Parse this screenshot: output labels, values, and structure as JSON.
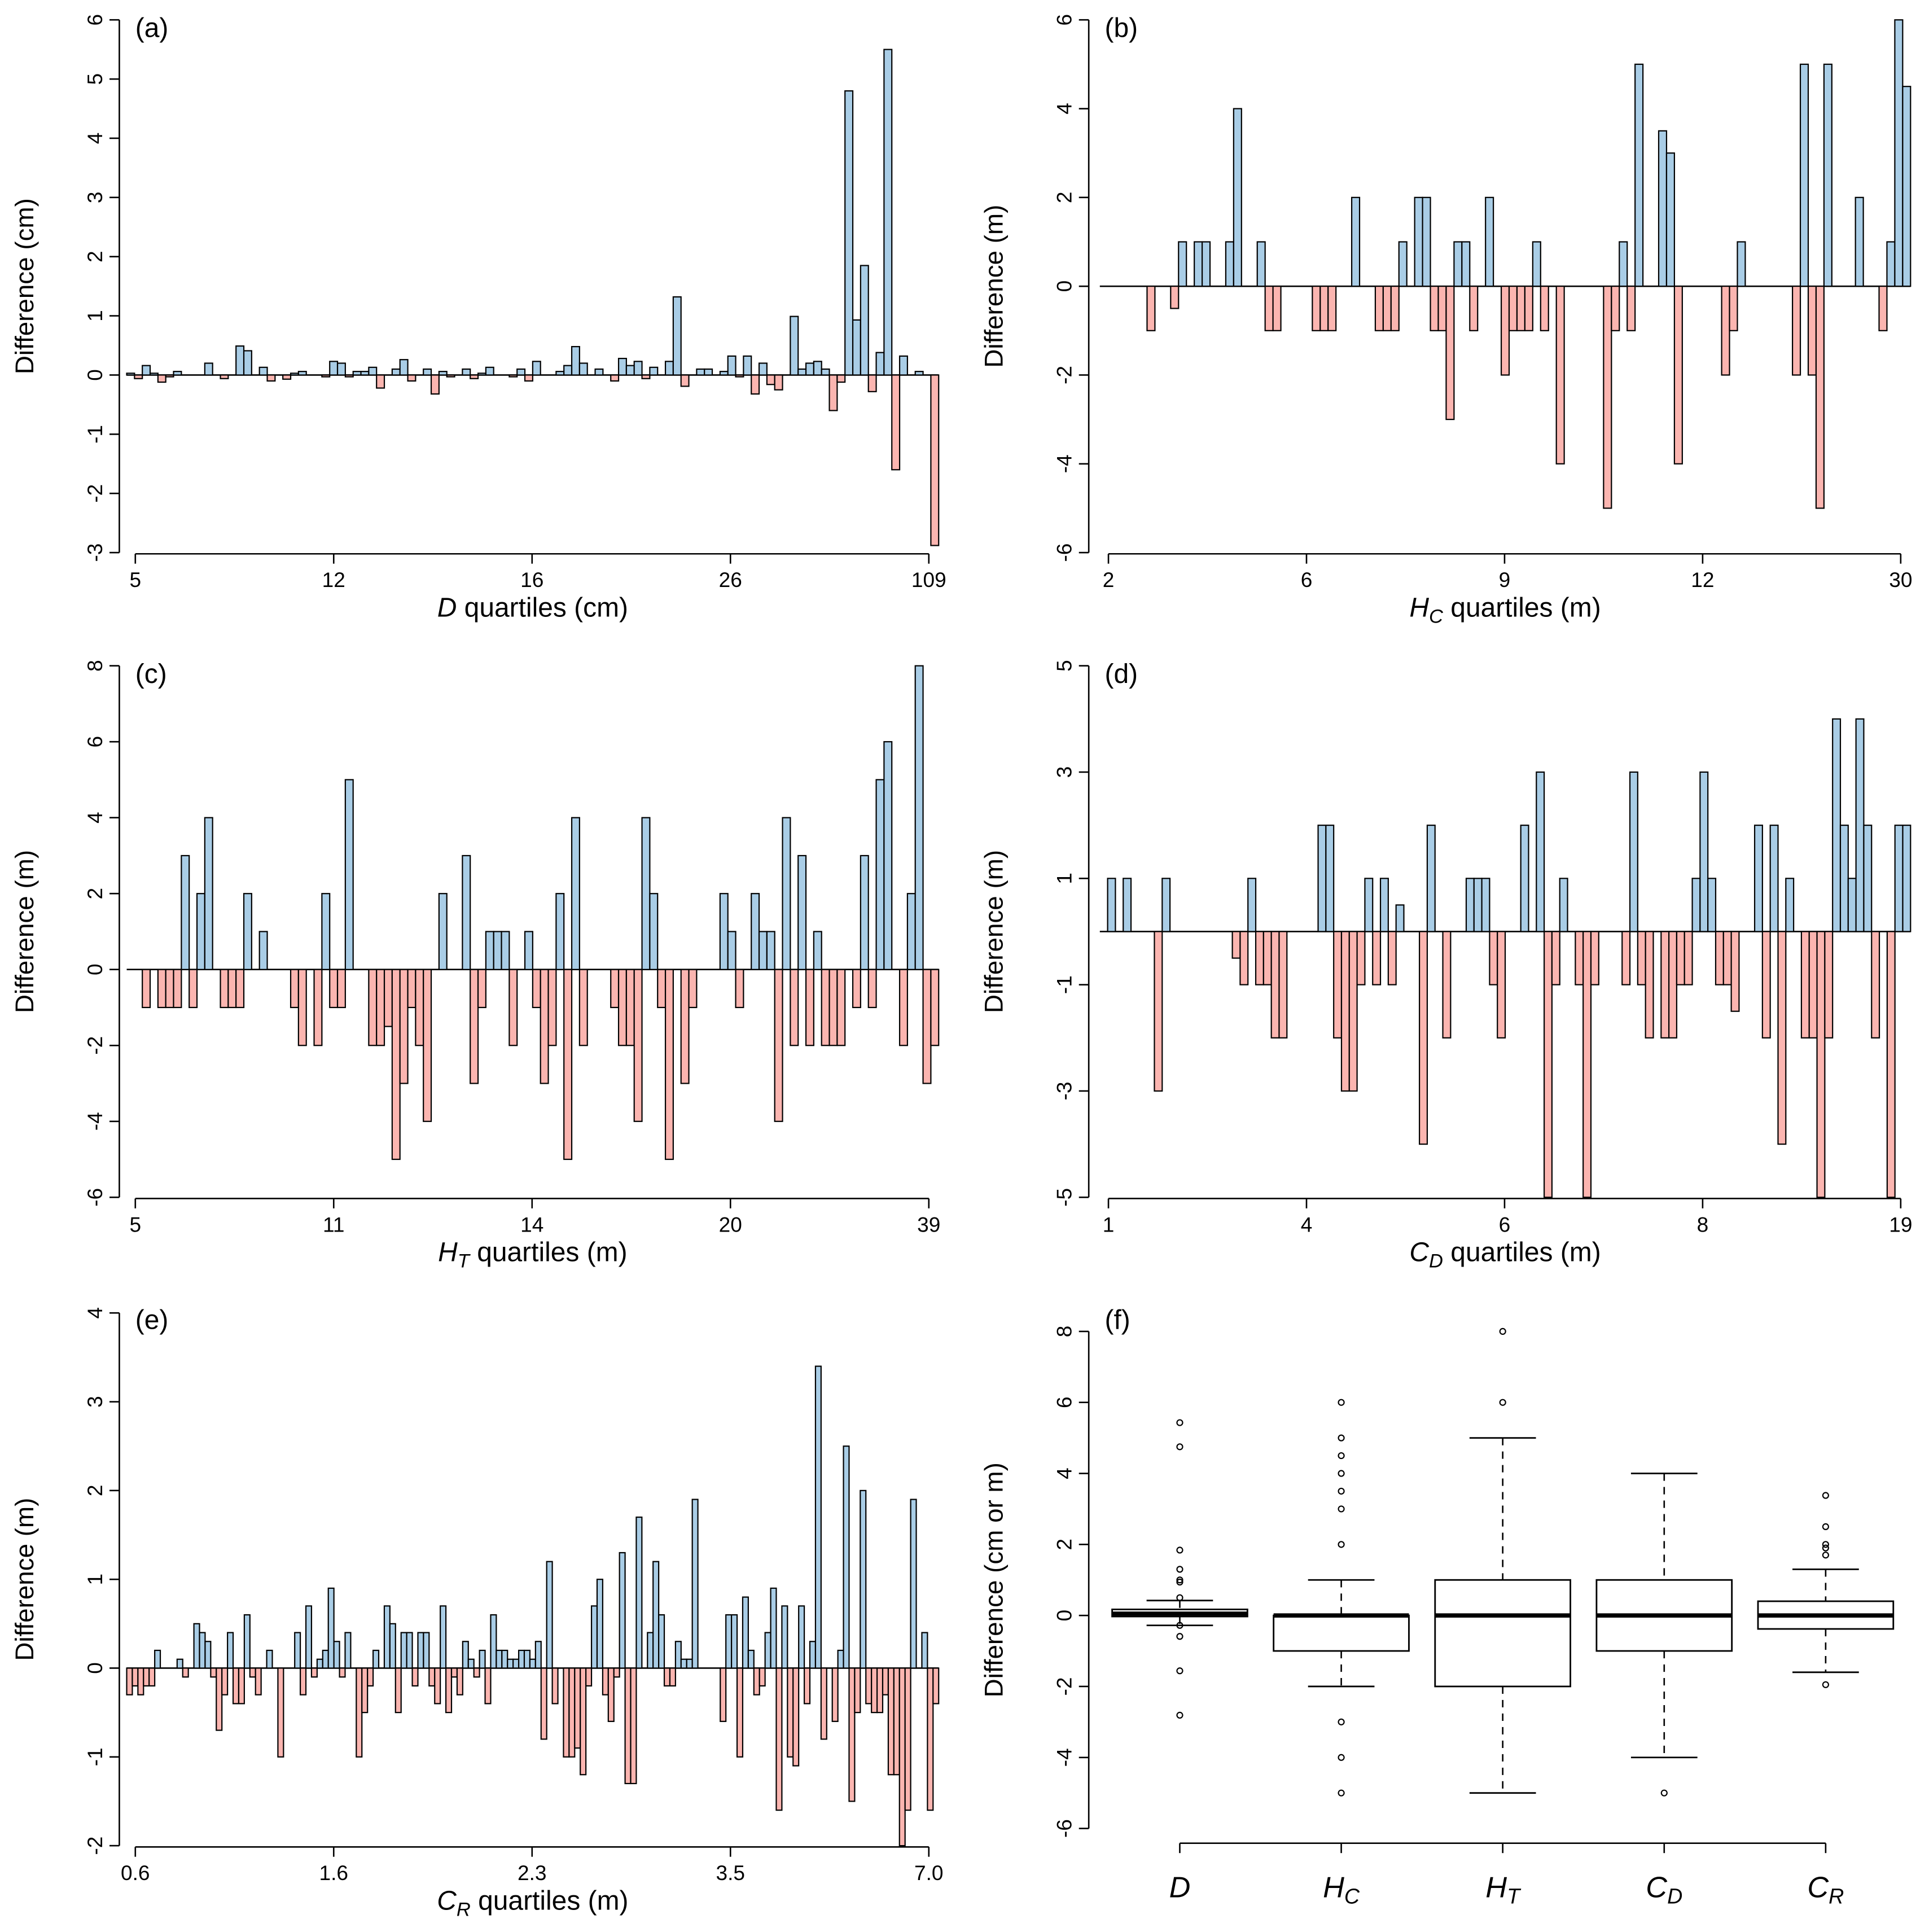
{
  "colors": {
    "positive": "#a9cde6",
    "negative": "#fbb5b0",
    "stroke": "#000000"
  },
  "chart_data": [
    {
      "panel": "(a)",
      "type": "bar",
      "ylabel": "Difference (cm)",
      "xlabel": {
        "var": "D",
        "sub": "",
        "rest": " quartiles (cm)"
      },
      "xticks": [
        "5",
        "12",
        "16",
        "26",
        "109"
      ],
      "yticks": [
        -3,
        -2,
        -1,
        0,
        1,
        2,
        3,
        4,
        5,
        6
      ],
      "ylim": [
        -3,
        6
      ],
      "values": [
        0.03,
        -0.06,
        0.16,
        0.03,
        -0.12,
        -0.03,
        0.06,
        0,
        0,
        0,
        0.2,
        0,
        -0.06,
        0,
        0.49,
        0.41,
        0,
        0.13,
        -0.1,
        0,
        -0.07,
        0.03,
        0.06,
        0,
        0,
        -0.03,
        0.23,
        0.2,
        -0.03,
        0.06,
        0.06,
        0.13,
        -0.22,
        0,
        0.1,
        0.26,
        -0.1,
        0,
        0.1,
        -0.32,
        0.06,
        -0.03,
        0,
        0.1,
        -0.06,
        0.03,
        0.13,
        0,
        0,
        -0.03,
        0.1,
        -0.1,
        0.23,
        0,
        0,
        0.06,
        0.16,
        0.48,
        0.2,
        0,
        0.1,
        0,
        -0.1,
        0.28,
        0.16,
        0.23,
        -0.06,
        0.13,
        0,
        0.23,
        1.32,
        -0.19,
        0,
        0.1,
        0.1,
        0,
        0.06,
        0.32,
        -0.03,
        0.32,
        -0.32,
        0.2,
        -0.16,
        -0.25,
        0,
        0.99,
        0.1,
        0.2,
        0.23,
        0.1,
        -0.6,
        -0.12,
        4.8,
        0.93,
        1.85,
        -0.28,
        0.38,
        5.5,
        -1.6,
        0.32,
        0,
        0.06,
        0,
        -2.88
      ]
    },
    {
      "panel": "(b)",
      "type": "bar",
      "ylabel": "Difference (m)",
      "xlabel": {
        "var": "H",
        "sub": "C",
        "rest": " quartiles (m)"
      },
      "xticks": [
        "2",
        "6",
        "9",
        "12",
        "30"
      ],
      "yticks": [
        -6,
        -4,
        -2,
        0,
        2,
        4,
        6
      ],
      "ylim": [
        -6,
        6
      ],
      "values": [
        0,
        0,
        0,
        0,
        0,
        0,
        -1,
        0,
        0,
        -0.5,
        1,
        0,
        1,
        1,
        0,
        0,
        1,
        4,
        0,
        0,
        1,
        -1,
        -1,
        0,
        0,
        0,
        0,
        -1,
        -1,
        -1,
        0,
        0,
        2,
        0,
        0,
        -1,
        -1,
        -1,
        1,
        0,
        2,
        2,
        -1,
        -1,
        -3,
        1,
        1,
        -1,
        0,
        2,
        0,
        -2,
        -1,
        -1,
        -1,
        1,
        -1,
        0,
        -4,
        0,
        0,
        0,
        0,
        0,
        -5,
        -1,
        1,
        -1,
        5,
        0,
        0,
        3.5,
        3,
        -4,
        0,
        0,
        0,
        0,
        0,
        -2,
        -1,
        1,
        0,
        0,
        0,
        0,
        0,
        0,
        -2,
        5,
        -2,
        -5,
        5,
        0,
        0,
        0,
        2,
        0,
        0,
        -1,
        1,
        6,
        4.5
      ]
    },
    {
      "panel": "(c)",
      "type": "bar",
      "ylabel": "Difference (m)",
      "xlabel": {
        "var": "H",
        "sub": "T",
        "rest": " quartiles (m)"
      },
      "xticks": [
        "5",
        "11",
        "14",
        "20",
        "39"
      ],
      "yticks": [
        -6,
        -4,
        -2,
        0,
        2,
        4,
        6,
        8
      ],
      "ylim": [
        -6,
        8
      ],
      "values": [
        0,
        0,
        -1,
        0,
        -1,
        -1,
        -1,
        3,
        -1,
        2,
        4,
        0,
        -1,
        -1,
        -1,
        2,
        0,
        1,
        0,
        0,
        0,
        -1,
        -2,
        0,
        -2,
        2,
        -1,
        -1,
        5,
        0,
        0,
        -2,
        -2,
        -1.5,
        -5,
        -3,
        -1,
        -2,
        -4,
        0,
        2,
        0,
        0,
        3,
        -3,
        -1,
        1,
        1,
        1,
        -2,
        0,
        1,
        -1,
        -3,
        -2,
        2,
        -5,
        4,
        -2,
        0,
        0,
        0,
        -1,
        -2,
        -2,
        -4,
        4,
        2,
        -1,
        -5,
        0,
        -3,
        -1,
        0,
        0,
        0,
        2,
        1,
        -1,
        0,
        2,
        1,
        1,
        -4,
        4,
        -2,
        3,
        -2,
        1,
        -2,
        -2,
        -2,
        0,
        -1,
        3,
        -1,
        5,
        6,
        0,
        -2,
        2,
        8,
        -3,
        -2
      ]
    },
    {
      "panel": "(d)",
      "type": "bar",
      "ylabel": "Difference (m)",
      "xlabel": {
        "var": "C",
        "sub": "D",
        "rest": " quartiles (m)"
      },
      "xticks": [
        "1",
        "4",
        "6",
        "8",
        "19"
      ],
      "yticks": [
        -5,
        -3,
        -1,
        1,
        3,
        5
      ],
      "ylim": [
        -5,
        5
      ],
      "values": [
        0,
        1,
        0,
        1,
        0,
        0,
        0,
        -3,
        1,
        0,
        0,
        0,
        0,
        0,
        0,
        0,
        0,
        -0.5,
        -1,
        1,
        -1,
        -1,
        -2,
        -2,
        0,
        0,
        0,
        0,
        2,
        2,
        -2,
        -3,
        -3,
        -1,
        1,
        -1,
        1,
        -1,
        0.5,
        0,
        0,
        -4,
        2,
        0,
        -2,
        0,
        0,
        1,
        1,
        1,
        -1,
        -2,
        0,
        0,
        2,
        0,
        3,
        -5,
        -1,
        1,
        0,
        -1,
        -5,
        -1,
        0,
        0,
        0,
        -1,
        3,
        -1,
        -2,
        0,
        -2,
        -2,
        -1,
        -1,
        1,
        3,
        1,
        -1,
        -1,
        -1.5,
        0,
        0,
        2,
        -2,
        2,
        -4,
        1,
        0,
        -2,
        -2,
        -5,
        -2,
        4,
        2,
        1,
        4,
        2,
        -2,
        0,
        -5,
        2,
        2
      ]
    },
    {
      "panel": "(e)",
      "type": "bar",
      "ylabel": "Difference (m)",
      "xlabel": {
        "var": "C",
        "sub": "R",
        "rest": " quartiles (m)"
      },
      "xticks": [
        "0.6",
        "1.6",
        "2.3",
        "3.5",
        "7.0"
      ],
      "yticks": [
        -2,
        -1,
        0,
        1,
        2,
        3,
        4
      ],
      "ylim": [
        -2,
        4
      ],
      "values": [
        -0.3,
        -0.2,
        -0.3,
        -0.2,
        -0.2,
        0.2,
        0,
        0,
        0,
        0.1,
        -0.1,
        0,
        0.5,
        0.4,
        0.3,
        -0.1,
        -0.7,
        -0.3,
        0.4,
        -0.4,
        -0.4,
        0.6,
        -0.1,
        -0.3,
        0,
        0.2,
        0,
        -1.0,
        0,
        0,
        0.4,
        -0.3,
        0.7,
        -0.1,
        0.1,
        0.2,
        0.9,
        0.3,
        -0.1,
        0.4,
        0,
        -1.0,
        -0.5,
        -0.2,
        0.2,
        0,
        0.7,
        0.5,
        -0.5,
        0.4,
        0.4,
        -0.2,
        0.4,
        0.4,
        -0.2,
        -0.4,
        0.7,
        -0.5,
        -0.1,
        -0.3,
        0.3,
        0.1,
        -0.1,
        0.2,
        -0.4,
        0.6,
        0.2,
        0.2,
        0.1,
        0.1,
        0.2,
        0.2,
        0.1,
        0.3,
        -0.8,
        1.2,
        -0.4,
        0,
        -1.0,
        -1.0,
        -0.9,
        -1.2,
        -0.2,
        0.7,
        1.0,
        -0.3,
        -0.6,
        -0.1,
        1.3,
        -1.3,
        -1.3,
        1.7,
        0,
        0.4,
        1.2,
        0.6,
        -0.2,
        -0.2,
        0.3,
        0.1,
        0.1,
        1.9,
        0,
        0,
        0,
        0,
        -0.6,
        0.6,
        0.6,
        -1.0,
        0.8,
        0.2,
        -0.3,
        -0.2,
        0.4,
        0.9,
        -1.6,
        0.7,
        -1.0,
        -1.1,
        0.7,
        -0.4,
        0.3,
        3.4,
        -0.8,
        0,
        -0.6,
        0.2,
        2.5,
        -1.5,
        -0.5,
        2.0,
        -0.4,
        -0.5,
        -0.5,
        -0.3,
        -1.2,
        -1.2,
        -2.0,
        -1.6,
        1.9,
        0,
        0.4,
        -1.6,
        -0.4
      ]
    },
    {
      "panel": "(f)",
      "type": "boxplot",
      "ylabel": "Difference (cm or m)",
      "yticks": [
        -6,
        -4,
        -2,
        0,
        2,
        4,
        6,
        8
      ],
      "ylim": [
        -6,
        8
      ],
      "categories": [
        {
          "var": "D",
          "sub": "",
          "q1": -0.03,
          "median": 0.05,
          "q3": 0.17,
          "whisker_low": -0.28,
          "whisker_high": 0.42,
          "outliers": [
            5.43,
            4.75,
            1.84,
            1.3,
            1.0,
            0.94,
            0.5,
            -0.28,
            -0.59,
            -1.56,
            -2.81
          ]
        },
        {
          "var": "H",
          "sub": "C",
          "q1": -1,
          "median": 0,
          "q3": 0,
          "whisker_low": -2,
          "whisker_high": 1,
          "outliers": [
            6,
            5,
            4.5,
            4,
            3.5,
            3,
            2,
            -3,
            -4,
            -5
          ]
        },
        {
          "var": "H",
          "sub": "T",
          "q1": -2,
          "median": 0,
          "q3": 1,
          "whisker_low": -5,
          "whisker_high": 5,
          "outliers": [
            8,
            6
          ]
        },
        {
          "var": "C",
          "sub": "D",
          "q1": -1,
          "median": 0,
          "q3": 1,
          "whisker_low": -4,
          "whisker_high": 4,
          "outliers": [
            -5
          ]
        },
        {
          "var": "C",
          "sub": "R",
          "q1": -0.38,
          "median": 0,
          "q3": 0.4,
          "whisker_low": -1.6,
          "whisker_high": 1.3,
          "outliers": [
            3.38,
            2.5,
            2.0,
            1.9,
            1.7,
            -1.95
          ]
        }
      ]
    }
  ]
}
